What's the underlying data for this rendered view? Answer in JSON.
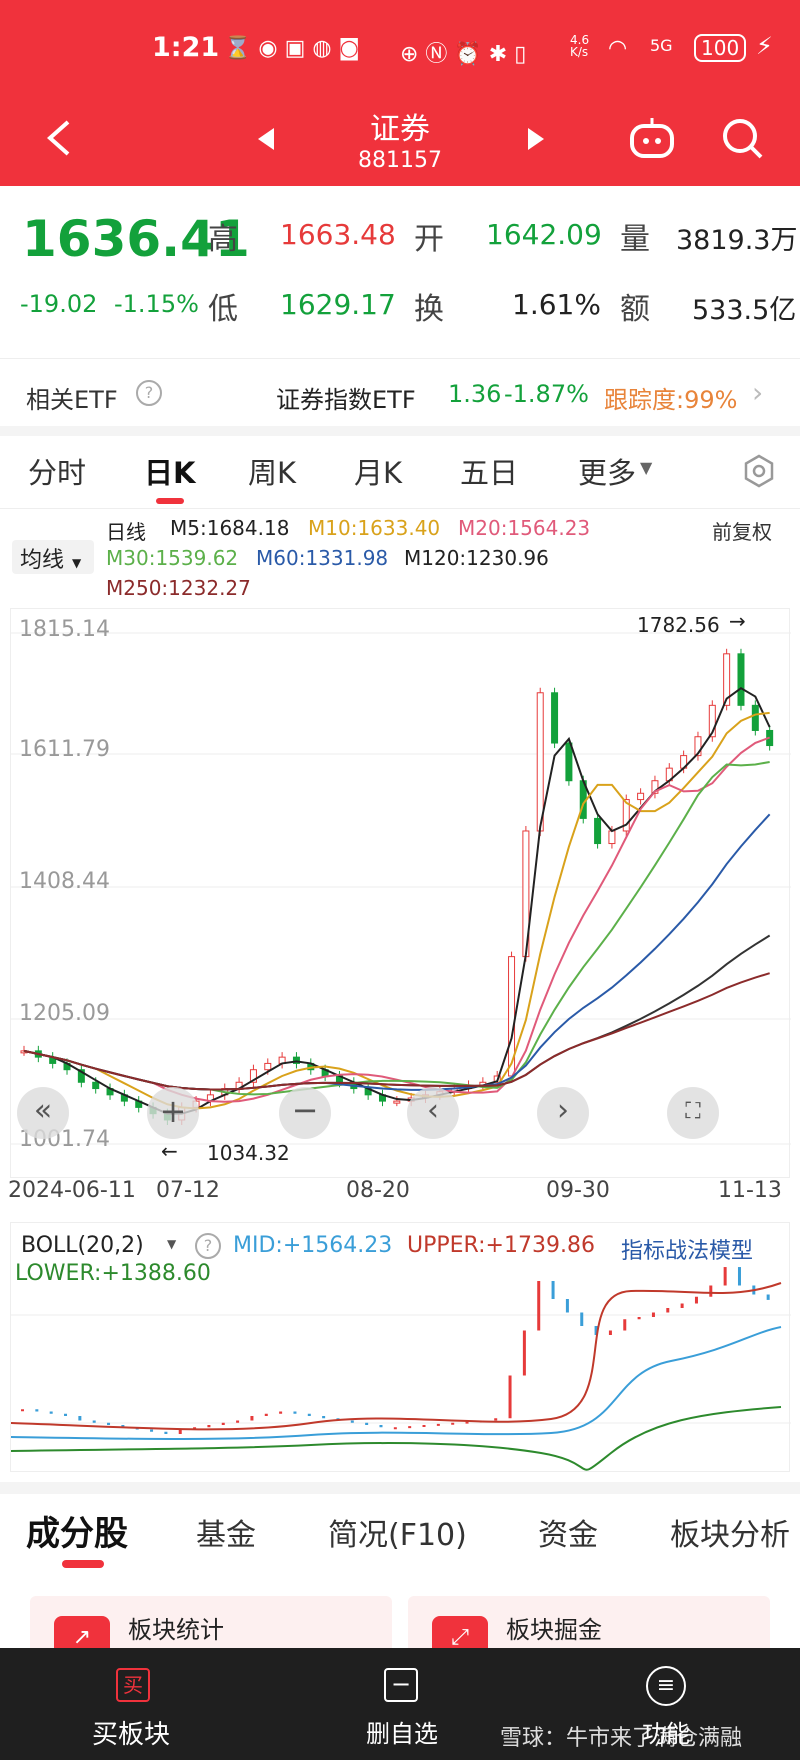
{
  "status": {
    "time": "1:21",
    "net_speed": "4.6\nK/s",
    "battery": "100",
    "signal": "5G"
  },
  "header": {
    "title": "证券",
    "code": "881157"
  },
  "quote": {
    "price": "1636.41",
    "change": "-19.02",
    "change_pct": "-1.15%",
    "high_label": "高",
    "high": "1663.48",
    "low_label": "低",
    "low": "1629.17",
    "open_label": "开",
    "open": "1642.09",
    "turnover_label": "换",
    "turnover": "1.61%",
    "volume_label": "量",
    "volume": "3819.3万",
    "amount_label": "额",
    "amount": "533.5亿"
  },
  "etf": {
    "label": "相关ETF",
    "name": "证券指数ETF",
    "price": "1.36",
    "change": "-1.87%",
    "tracking": "跟踪度:99%"
  },
  "tabs": [
    "分时",
    "日K",
    "周K",
    "月K",
    "五日",
    "更多"
  ],
  "kline_legend": {
    "period": "日线",
    "ma_button": "均线",
    "adjust": "前复权",
    "m5": "M5:1684.18",
    "m10": "M10:1633.40",
    "m20": "M20:1564.23",
    "m30": "M30:1539.62",
    "m60": "M60:1331.98",
    "m120": "M120:1230.96",
    "m250": "M250:1232.27"
  },
  "kline_axis": {
    "y_ticks": [
      "1815.14",
      "1611.79",
      "1408.44",
      "1205.09",
      "1001.74"
    ],
    "x_ticks": [
      "2024-06-11",
      "07-12",
      "08-20",
      "09-30",
      "11-13"
    ],
    "high_marker": "1782.56",
    "low_marker": "1034.32"
  },
  "boll": {
    "label": "BOLL(20,2)",
    "mid": "MID:+1564.23",
    "upper": "UPPER:+1739.86",
    "lower": "LOWER:+1388.60",
    "model": "指标战法模型"
  },
  "section_tabs": [
    "成分股",
    "基金",
    "简况(F10)",
    "资金",
    "板块分析"
  ],
  "cards": [
    "板块统计",
    "板块掘金"
  ],
  "bottom_nav": {
    "buy": "买板块",
    "buy_icon": "买",
    "remove": "删自选",
    "more": "功能",
    "watermark": "雪球：牛市来了满仓满融"
  },
  "colors": {
    "brand_red": "#f0323c",
    "up": "#e63a3a",
    "down": "#13a13b",
    "m5": "#222222",
    "m10": "#d9a21b",
    "m20": "#e05a7a",
    "m30": "#5cb04a",
    "m60": "#2a5aa8",
    "m120": "#333333",
    "m250": "#8b2b2b"
  },
  "chart_data": [
    {
      "type": "line",
      "title": "日线",
      "y_ticks": [
        1815.14,
        1611.79,
        1408.44,
        1205.09,
        1001.74
      ],
      "x_ticks": [
        "2024-06-11",
        "07-12",
        "08-20",
        "09-30",
        "11-13"
      ],
      "ylim": [
        1001.74,
        1815.14
      ],
      "series": [
        {
          "name": "M5",
          "last": 1684.18
        },
        {
          "name": "M10",
          "last": 1633.4
        },
        {
          "name": "M20",
          "last": 1564.23
        },
        {
          "name": "M30",
          "last": 1539.62
        },
        {
          "name": "M60",
          "last": 1331.98
        },
        {
          "name": "M120",
          "last": 1230.96
        },
        {
          "name": "M250",
          "last": 1232.27
        }
      ],
      "close_series": [
        1150,
        1140,
        1130,
        1120,
        1100,
        1090,
        1080,
        1070,
        1060,
        1050,
        1040,
        1060,
        1070,
        1080,
        1090,
        1100,
        1120,
        1130,
        1140,
        1130,
        1120,
        1110,
        1100,
        1090,
        1080,
        1070,
        1070,
        1075,
        1080,
        1085,
        1090,
        1095,
        1100,
        1110,
        1300,
        1500,
        1720,
        1640,
        1580,
        1520,
        1480,
        1500,
        1550,
        1560,
        1580,
        1600,
        1620,
        1650,
        1700,
        1782,
        1700,
        1660,
        1636
      ],
      "annotations": [
        "1782.56",
        "1034.32"
      ]
    },
    {
      "type": "line",
      "title": "BOLL(20,2)",
      "series": [
        {
          "name": "MID",
          "last": 1564.23
        },
        {
          "name": "UPPER",
          "last": 1739.86
        },
        {
          "name": "LOWER",
          "last": 1388.6
        }
      ]
    }
  ]
}
